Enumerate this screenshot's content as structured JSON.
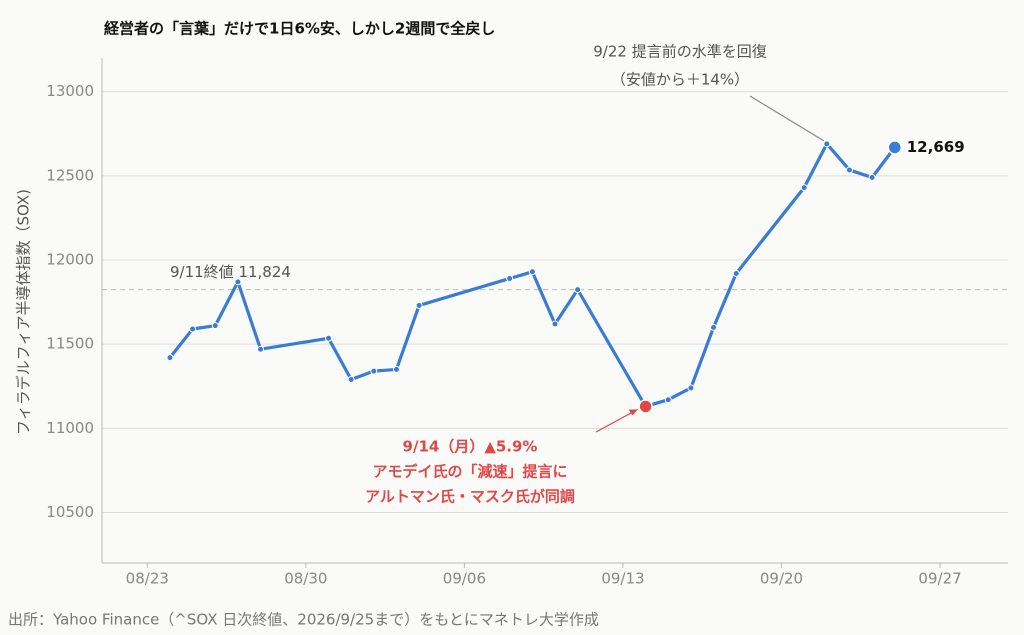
{
  "chart_data": {
    "type": "line",
    "title": "経営者の「言葉」だけで1日6%安、しかし2週間で全戻し",
    "y_label": "フィラデルフィア半導体指数（SOX)",
    "source": "出所：Yahoo Finance（^SOX 日次終値、2026/9/25まで）をもとにマネトレ大学作成",
    "x": [
      "08/24",
      "08/25",
      "08/26",
      "08/27",
      "08/28",
      "08/31",
      "09/01",
      "09/02",
      "09/03",
      "09/04",
      "09/08",
      "09/09",
      "09/10",
      "09/11",
      "09/14",
      "09/15",
      "09/16",
      "09/17",
      "09/18",
      "09/21",
      "09/22",
      "09/23",
      "09/24",
      "09/25"
    ],
    "series": [
      {
        "name": "SOX",
        "color": "#3a7bd5",
        "values": [
          11420,
          11590,
          11610,
          11870,
          11470,
          11535,
          11290,
          11340,
          11350,
          11730,
          11890,
          11930,
          11620,
          11824,
          11130,
          11170,
          11240,
          11600,
          11920,
          12430,
          12690,
          12535,
          12490,
          12669
        ],
        "value_labels": [
          null,
          null,
          null,
          null,
          null,
          null,
          null,
          null,
          null,
          null,
          null,
          null,
          null,
          null,
          null,
          null,
          null,
          null,
          null,
          null,
          null,
          null,
          null,
          "12,669"
        ]
      }
    ],
    "xlim": [
      "08/21",
      "09/30"
    ],
    "xticks": [
      "08/23",
      "08/30",
      "09/06",
      "09/13",
      "09/20",
      "09/27"
    ],
    "ylim": [
      10200,
      13200
    ],
    "yticks": [
      10500,
      11000,
      11500,
      12000,
      12500,
      13000
    ],
    "grid": true,
    "reference_line": {
      "value": 11824,
      "label": "9/11終値 11,824"
    },
    "annotations": [
      {
        "text": [
          "9/22 提言前の水準を回復",
          "（安値から＋14%）"
        ],
        "color": "#555555"
      },
      {
        "text": [
          "9/14（月）▲5.9%",
          "アモデイ氏の「減速」提言に",
          "アルトマン氏・マスク氏が同調"
        ],
        "color": "#e04848"
      }
    ]
  }
}
